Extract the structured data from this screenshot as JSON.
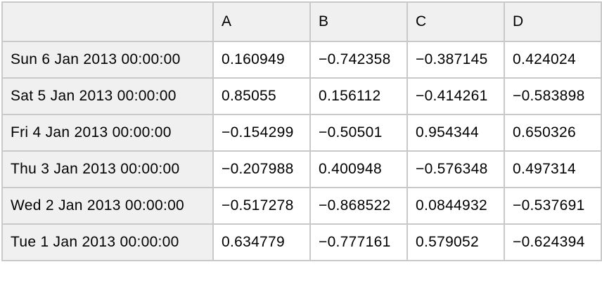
{
  "colors": {
    "header_background": "#f0f0f0",
    "cell_background": "#ffffff",
    "border": "#c9c9c9",
    "text": "#000000"
  },
  "chart_data": {
    "type": "table",
    "columns": [
      "",
      "A",
      "B",
      "C",
      "D"
    ],
    "rows": [
      {
        "index": "Sun 6 Jan 2013 00:00:00",
        "values": [
          0.160949,
          -0.742358,
          -0.387145,
          0.424024
        ]
      },
      {
        "index": "Sat 5 Jan 2013 00:00:00",
        "values": [
          0.85055,
          0.156112,
          -0.414261,
          -0.583898
        ]
      },
      {
        "index": "Fri 4 Jan 2013 00:00:00",
        "values": [
          -0.154299,
          -0.50501,
          0.954344,
          0.650326
        ]
      },
      {
        "index": "Thu 3 Jan 2013 00:00:00",
        "values": [
          -0.207988,
          0.400948,
          -0.576348,
          0.497314
        ]
      },
      {
        "index": "Wed 2 Jan 2013 00:00:00",
        "values": [
          -0.517278,
          -0.868522,
          0.0844932,
          -0.537691
        ]
      },
      {
        "index": "Tue 1 Jan 2013 00:00:00",
        "values": [
          0.634779,
          -0.777161,
          0.579052,
          -0.624394
        ]
      }
    ],
    "title": "",
    "notes": "negative numbers rendered with U+2212 minus sign"
  }
}
